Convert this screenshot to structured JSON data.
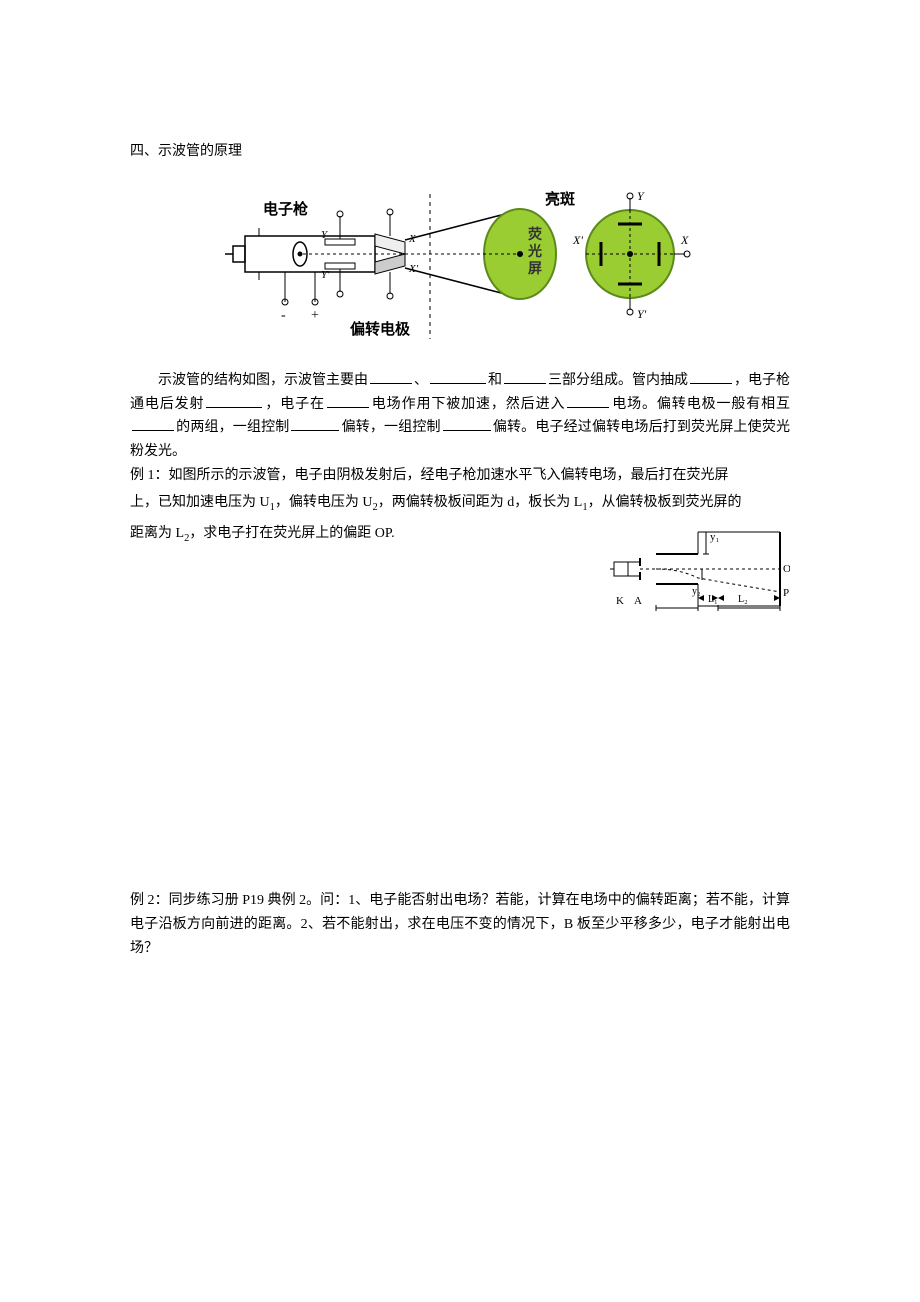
{
  "section_title": "四、示波管的原理",
  "diagram1": {
    "labels": {
      "gun": "电子枪",
      "deflection": "偏转电极",
      "bright_spot": "亮斑",
      "screen": "荧光屏",
      "X": "X",
      "Xp": "X'",
      "Y": "Y",
      "Yp": "Y'",
      "Y_right": "Y",
      "Yp_right": "Y'",
      "X_right": "X",
      "Xp_right": "X'",
      "plus": "+",
      "minus": "-"
    },
    "colors": {
      "screen_fill": "#9acd32",
      "screen_stroke": "#5c8a1a",
      "line": "#000000",
      "bg": "#ffffff",
      "label_text": "#000000"
    }
  },
  "intro_parts": {
    "p1": "示波管的结构如图，示波管主要由",
    "p2": "、",
    "p3": "和",
    "p4": "三部分组成。管内抽成",
    "p5": "，电子枪通电后发射",
    "p6": "，电子在",
    "p7": "电场作用下被加速，然后进入",
    "p8": "电场。偏转电极一般有相互",
    "p9": "的两组，一组控制",
    "p10": "偏转，一组控制",
    "p11": "偏转。电子经过偏转电场后打到荧光屏上使荧光粉发光。"
  },
  "example1": {
    "line1_a": "例 1：如图所示的示波管，电子由阴极发射后，经电子枪加速水平飞入偏转电场，最后打在荧光屏",
    "line2_a": "上，已知加速电压为 U",
    "line2_b": "，偏转电压为 U",
    "line2_c": "，两偏转极板间距为 d，板长为 L",
    "line2_d": "，从偏转极板到荧光屏的",
    "line3_a": "距离为 L",
    "line3_b": "，求电子打在荧光屏上的偏距 OP."
  },
  "diagram2": {
    "labels": {
      "K": "K",
      "A": "A",
      "y1": "y₁",
      "y2": "y₂",
      "L1": "L₁",
      "L2": "L₂",
      "O": "O",
      "P": "P"
    },
    "colors": {
      "line": "#000000"
    }
  },
  "example2": "例 2：同步练习册 P19 典例 2。问：1、电子能否射出电场？若能，计算在电场中的偏转距离；若不能，计算电子沿板方向前进的距离。2、若不能射出，求在电压不变的情况下，B 板至少平移多少，电子才能射出电场？"
}
